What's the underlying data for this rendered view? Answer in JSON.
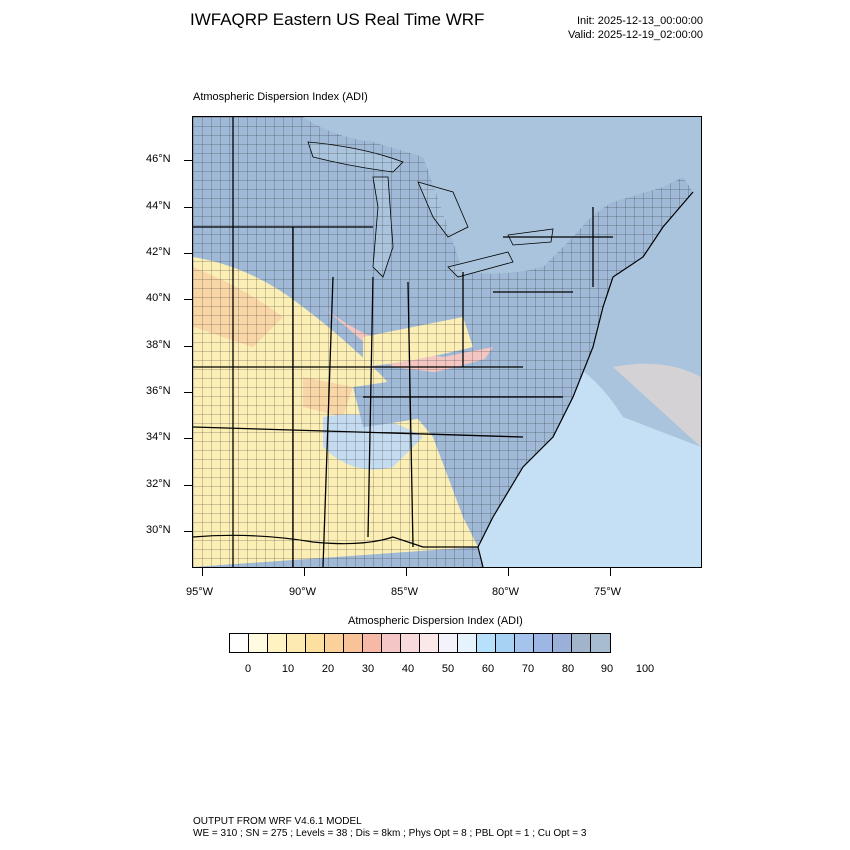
{
  "header": {
    "title": "IWFAQRP Eastern US Real Time WRF",
    "init": "Init: 2025-12-13_00:00:00",
    "valid": "Valid: 2025-12-19_02:00:00"
  },
  "map": {
    "subtitle": "Atmospheric Dispersion Index   (ADI)",
    "lat_labels": [
      "46°N",
      "44°N",
      "42°N",
      "40°N",
      "38°N",
      "36°N",
      "34°N",
      "32°N",
      "30°N"
    ],
    "lon_labels": [
      "95°W",
      "90°W",
      "85°W",
      "80°W",
      "75°W"
    ],
    "colors": {
      "water": "#a9c4dc",
      "land_good": "#9fb9d6",
      "land_light": "#c5dbf0",
      "land_yellow": "#fbefb6",
      "land_orange": "#f9d6a6",
      "land_pink": "#f3c6c2",
      "ocean_light": "#c8e2f7"
    }
  },
  "colorbar": {
    "title": "Atmospheric Dispersion Index  (ADI)",
    "colors": [
      "#ffffff",
      "#fffbe0",
      "#fff3c4",
      "#fdeab0",
      "#fde0a0",
      "#fbd09a",
      "#f9c39a",
      "#f6b9a8",
      "#f4c6c6",
      "#f8dada",
      "#fbe9ea",
      "#f4f3fb",
      "#e6f3fd",
      "#b7e1fb",
      "#a8d2f3",
      "#a5c4ed",
      "#9eb6e3",
      "#9ab0d8",
      "#a2b4cc",
      "#a8bccf"
    ],
    "labels": [
      "0",
      "10",
      "20",
      "30",
      "40",
      "50",
      "60",
      "70",
      "80",
      "90",
      "100"
    ]
  },
  "footer": {
    "line1": "OUTPUT FROM WRF V4.6.1 MODEL",
    "line2": "WE = 310 ; SN = 275 ; Levels = 38 ; Dis = 8km ; Phys Opt = 8 ; PBL Opt = 1 ; Cu Opt = 3"
  }
}
